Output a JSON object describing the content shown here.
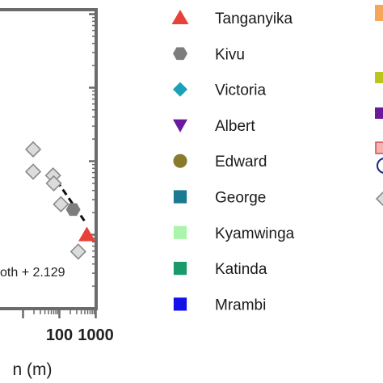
{
  "chart_data": {
    "type": "scatter",
    "x_scale": "log",
    "y_scale": "log",
    "x_ticks": [
      "100",
      "1000"
    ],
    "xlabel_visible": "n (m)",
    "equation_visible": "oth + 2.129",
    "xlim_visible": [
      16,
      1000
    ],
    "ylim_visible": [
      0.1,
      10
    ],
    "grid": false,
    "legend_position": "right",
    "fit_line": {
      "style": "dashed",
      "x": [
        85,
        560
      ],
      "y": [
        0.54,
        0.14
      ]
    },
    "series": [
      {
        "name": "Tanganyika",
        "marker": "triangle-up",
        "color": "#e8413a",
        "points": [
          {
            "x": 570,
            "y": 0.1
          }
        ]
      },
      {
        "name": "Kivu",
        "marker": "hexagon",
        "color": "#7d7d7d",
        "points": [
          {
            "x": 240,
            "y": 0.22
          }
        ]
      },
      {
        "name": "Victoria",
        "marker": "diamond",
        "color": "#1aa0b8",
        "points": []
      },
      {
        "name": "Albert",
        "marker": "triangle-down",
        "color": "#6a1aa0",
        "points": []
      },
      {
        "name": "Edward",
        "marker": "circle",
        "color": "#8a7a2c",
        "points": []
      },
      {
        "name": "George",
        "marker": "square",
        "color": "#1a7a92",
        "points": []
      },
      {
        "name": "Kyamwinga",
        "marker": "square",
        "color": "#aaf5aa",
        "points": []
      },
      {
        "name": "Katinda",
        "marker": "square",
        "color": "#1a9a6a",
        "points": []
      },
      {
        "name": "Mrambi",
        "marker": "square",
        "color": "#1212e8",
        "points": []
      },
      {
        "name": "",
        "marker": "diamond-open",
        "color": "#888888",
        "points": [
          {
            "x": 19,
            "y": 1.45
          },
          {
            "x": 19,
            "y": 0.72
          },
          {
            "x": 67,
            "y": 0.64
          },
          {
            "x": 70,
            "y": 0.5
          },
          {
            "x": 110,
            "y": 0.26
          },
          {
            "x": 330,
            "y": 0.059
          }
        ]
      }
    ]
  }
}
